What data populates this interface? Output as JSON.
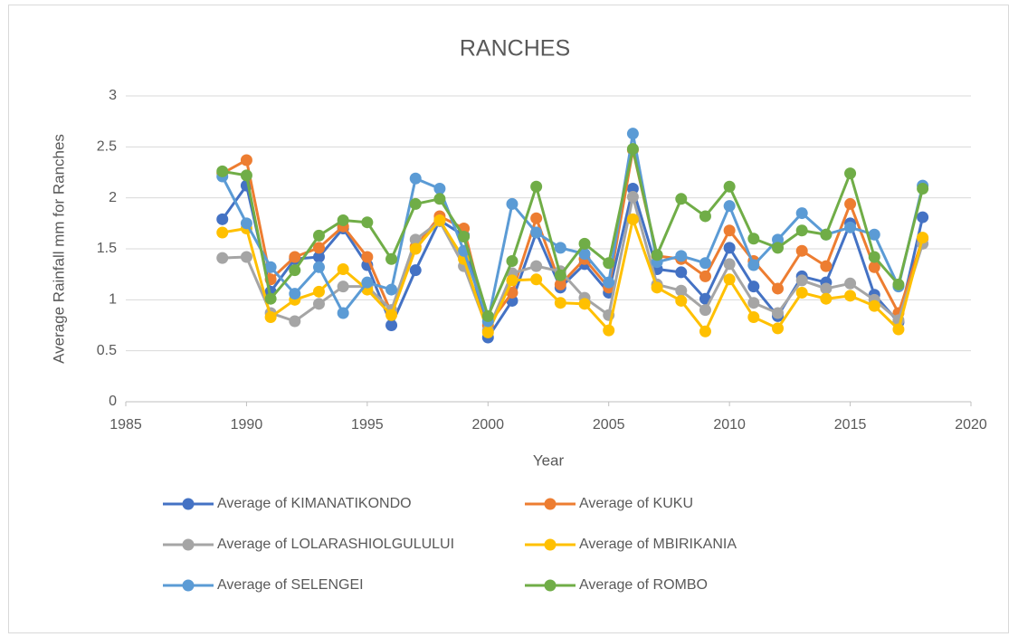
{
  "chart_data": {
    "type": "line",
    "title": "RANCHES",
    "x_label": "Year",
    "y_label": "Average Rainfall mm for Ranches",
    "x": [
      1989,
      1990,
      1991,
      1992,
      1993,
      1994,
      1995,
      1996,
      1997,
      1998,
      1999,
      2000,
      2001,
      2002,
      2003,
      2004,
      2005,
      2006,
      2007,
      2008,
      2009,
      2010,
      2011,
      2012,
      2013,
      2014,
      2015,
      2016,
      2017,
      2018
    ],
    "xlim": [
      1985,
      2020
    ],
    "xticks": [
      1985,
      1990,
      1995,
      2000,
      2005,
      2010,
      2015,
      2020
    ],
    "ylim": [
      0,
      3
    ],
    "yticks": [
      0,
      0.5,
      1,
      1.5,
      2,
      2.5,
      3
    ],
    "grid": true,
    "legend": "bottom",
    "series": [
      {
        "name": "Average of KIMANATIKONDO",
        "color": "#4472c4",
        "values": [
          1.79,
          2.12,
          1.08,
          1.4,
          1.42,
          1.7,
          1.34,
          0.75,
          1.29,
          1.78,
          1.63,
          0.63,
          0.99,
          1.66,
          1.12,
          1.35,
          1.07,
          2.09,
          1.3,
          1.27,
          1.01,
          1.51,
          1.13,
          0.84,
          1.23,
          1.17,
          1.75,
          1.05,
          0.78,
          1.81
        ]
      },
      {
        "name": "Average of KUKU",
        "color": "#ed7d31",
        "values": [
          2.24,
          2.37,
          1.2,
          1.42,
          1.51,
          1.72,
          1.42,
          0.87,
          1.52,
          1.82,
          1.7,
          0.75,
          1.07,
          1.8,
          1.15,
          1.4,
          1.12,
          2.47,
          1.43,
          1.4,
          1.23,
          1.68,
          1.38,
          1.11,
          1.48,
          1.33,
          1.94,
          1.32,
          0.87,
          1.6
        ]
      },
      {
        "name": "Average of LOLARASHIOLGULULUI",
        "color": "#a5a5a5",
        "values": [
          1.41,
          1.42,
          0.87,
          0.79,
          0.96,
          1.13,
          1.13,
          0.9,
          1.59,
          1.77,
          1.33,
          0.7,
          1.26,
          1.33,
          1.28,
          1.02,
          0.85,
          2.01,
          1.15,
          1.09,
          0.9,
          1.35,
          0.97,
          0.87,
          1.19,
          1.11,
          1.16,
          1.0,
          0.8,
          1.55
        ]
      },
      {
        "name": "Average of MBIRIKANIA",
        "color": "#ffc000",
        "values": [
          1.66,
          1.7,
          0.83,
          1.0,
          1.08,
          1.3,
          1.1,
          0.85,
          1.5,
          1.78,
          1.4,
          0.68,
          1.19,
          1.2,
          0.97,
          0.96,
          0.7,
          1.79,
          1.12,
          0.99,
          0.69,
          1.2,
          0.83,
          0.72,
          1.07,
          1.01,
          1.04,
          0.94,
          0.71,
          1.61
        ]
      },
      {
        "name": "Average of SELENGEI",
        "color": "#5b9bd5",
        "values": [
          2.21,
          1.75,
          1.32,
          1.06,
          1.32,
          0.87,
          1.17,
          1.1,
          2.19,
          2.09,
          1.48,
          0.79,
          1.94,
          1.66,
          1.51,
          1.45,
          1.17,
          2.63,
          1.37,
          1.43,
          1.36,
          1.92,
          1.34,
          1.59,
          1.85,
          1.64,
          1.71,
          1.64,
          1.13,
          2.12
        ]
      },
      {
        "name": "Average of ROMBO",
        "color": "#70ad47",
        "values": [
          2.26,
          2.22,
          1.01,
          1.29,
          1.63,
          1.78,
          1.76,
          1.4,
          1.94,
          1.99,
          1.62,
          0.84,
          1.38,
          2.11,
          1.24,
          1.55,
          1.36,
          2.48,
          1.44,
          1.99,
          1.82,
          2.11,
          1.6,
          1.51,
          1.68,
          1.64,
          2.24,
          1.42,
          1.15,
          2.09
        ]
      }
    ]
  }
}
